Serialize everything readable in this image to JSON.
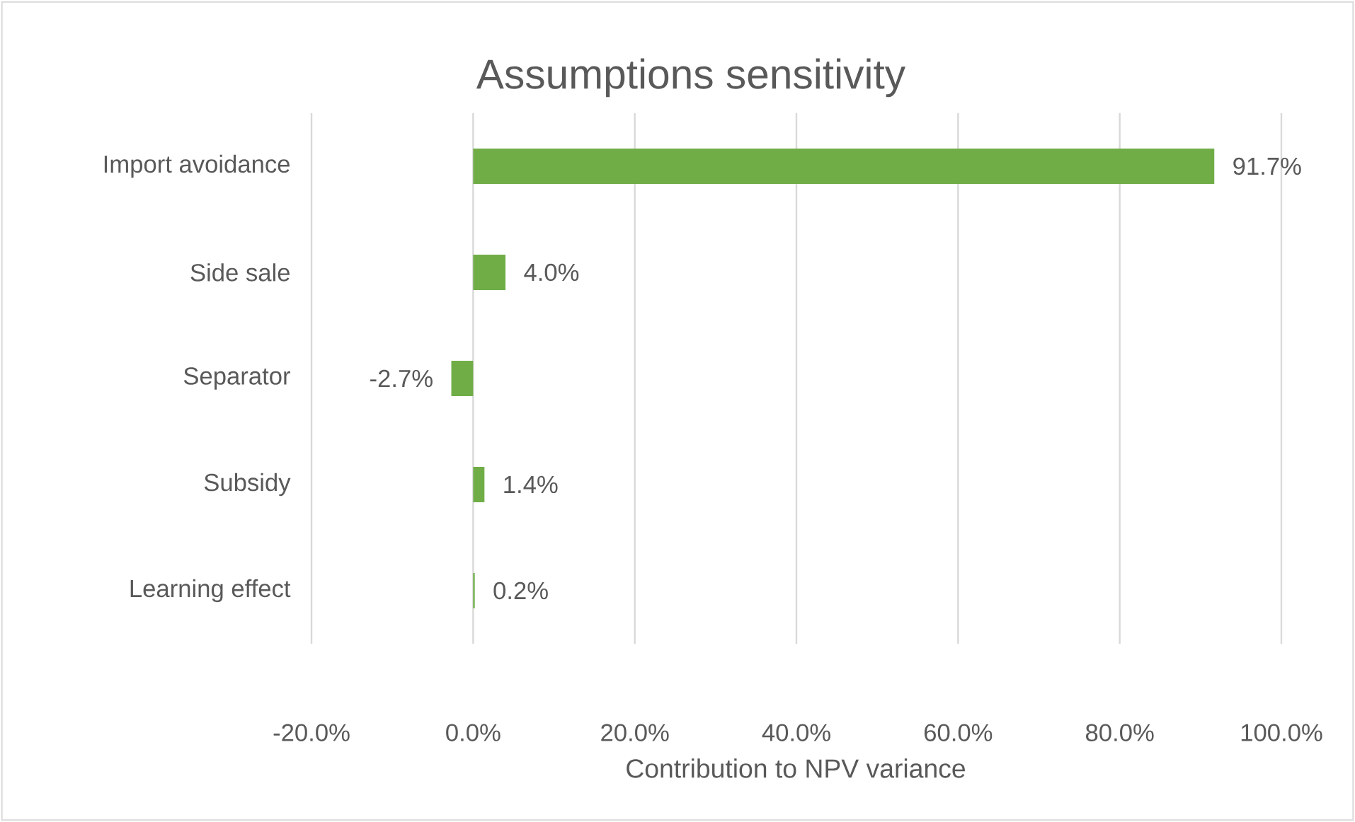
{
  "chart_data": {
    "type": "bar",
    "orientation": "horizontal",
    "title": "Assumptions sensitivity",
    "xlabel": "Contribution to NPV variance",
    "categories": [
      "Import avoidance",
      "Side sale",
      "Separator",
      "Subsidy",
      "Learning effect"
    ],
    "values": [
      91.7,
      4.0,
      -2.7,
      1.4,
      0.2
    ],
    "value_labels": [
      "91.7%",
      "4.0%",
      "-2.7%",
      "1.4%",
      "0.2%"
    ],
    "color": "#70ad47",
    "xlim": [
      -20,
      100
    ],
    "xticks": [
      {
        "value": -20,
        "label": "-20.0%"
      },
      {
        "value": 0,
        "label": "0.0%"
      },
      {
        "value": 20,
        "label": "20.0%"
      },
      {
        "value": 40,
        "label": "40.0%"
      },
      {
        "value": 60,
        "label": "60.0%"
      },
      {
        "value": 80,
        "label": "80.0%"
      },
      {
        "value": 100,
        "label": "100.0%"
      }
    ],
    "grid": "x"
  }
}
